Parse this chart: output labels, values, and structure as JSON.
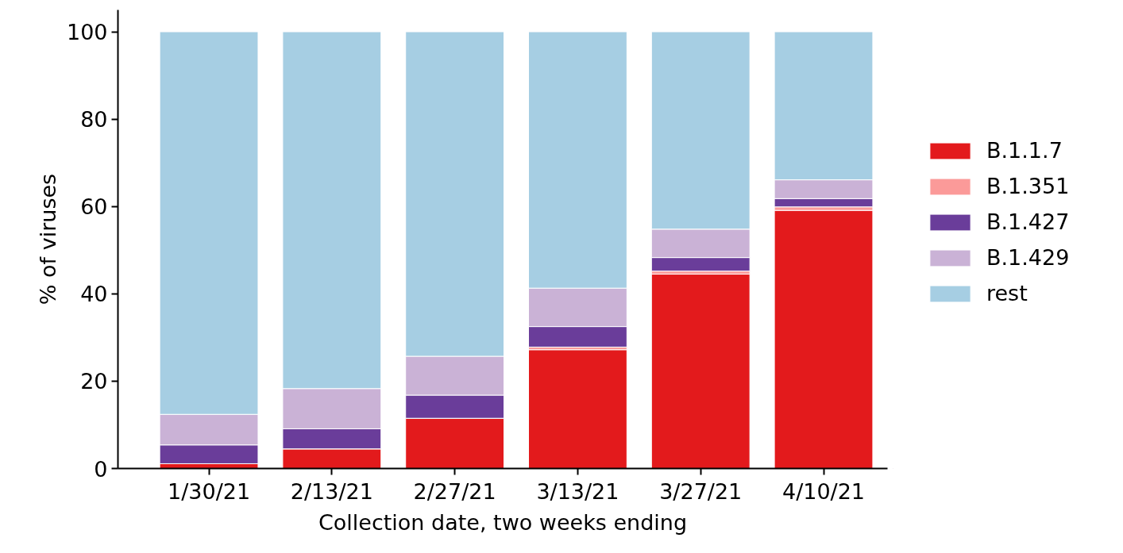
{
  "chart_data": {
    "type": "bar",
    "stacked": true,
    "xlabel": "Collection date, two weeks ending",
    "ylabel": "% of viruses",
    "categories": [
      "1/30/21",
      "2/13/21",
      "2/27/21",
      "3/13/21",
      "3/27/21",
      "4/10/21"
    ],
    "series": [
      {
        "name": "B.1.1.7",
        "color": "#e31a1c",
        "values": [
          1.1,
          4.5,
          11.5,
          27.2,
          44.5,
          59.1
        ]
      },
      {
        "name": "B.1.351",
        "color": "#fb9a99",
        "values": [
          0,
          null,
          0,
          0.6,
          0.7,
          0.8
        ]
      },
      {
        "name": "B.1.427",
        "color": "#6a3d9a",
        "values": [
          4.3,
          4.6,
          5.3,
          4.7,
          3.1,
          1.9
        ]
      },
      {
        "name": "B.1.429",
        "color": "#cab2d6",
        "values": [
          7.0,
          9.2,
          8.9,
          8.8,
          6.5,
          4.3
        ]
      },
      {
        "name": "rest",
        "color": "#a6cee3",
        "values": [
          87.6,
          81.7,
          74.3,
          58.7,
          45.2,
          33.9
        ]
      }
    ],
    "ylim": [
      0,
      105
    ],
    "yticks": [
      0,
      20,
      40,
      60,
      80,
      100
    ],
    "grid": false,
    "legend": "right"
  }
}
